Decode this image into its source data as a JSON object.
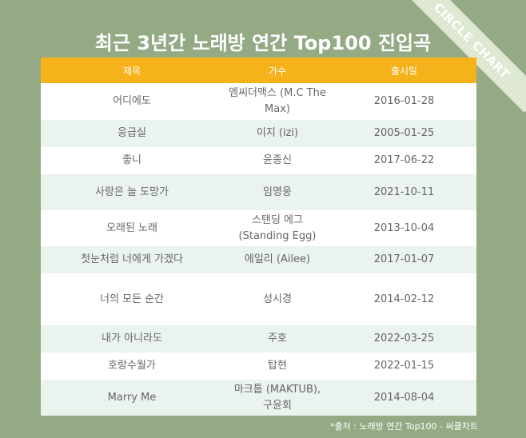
{
  "watermark": "CIRCLE CHART",
  "title": "최근 3년간 노래방 연간 Top100 진입곡",
  "table": {
    "headers": [
      "제목",
      "가수",
      "출시일"
    ],
    "rows": [
      {
        "title": "어디에도",
        "artist": "엠씨더맥스 (M.C The Max)",
        "date": "2016-01-28"
      },
      {
        "title": "응급실",
        "artist": "이지 (izi)",
        "date": "2005-01-25"
      },
      {
        "title": "좋니",
        "artist": "윤종신",
        "date": "2017-06-22"
      },
      {
        "title": "사랑은 늘 도망가",
        "artist": "임영웅",
        "date": "2021-10-11"
      },
      {
        "title": "오래된 노래",
        "artist": "스탠딩 에그(Standing Egg)",
        "date": "2013-10-04"
      },
      {
        "title": "첫눈처럼 너에게 가겠다",
        "artist": "에일리 (Ailee)",
        "date": "2017-01-07"
      },
      {
        "title": "너의 모든 순간",
        "artist": "성시경",
        "date": "2014-02-12"
      },
      {
        "title": "내가 아니라도",
        "artist": "주호",
        "date": "2022-03-25"
      },
      {
        "title": "호랑수월가",
        "artist": "탑현",
        "date": "2022-01-15"
      },
      {
        "title": "Marry Me",
        "artist": "마크툽 (MAKTUB), 구윤회",
        "date": "2014-08-04"
      }
    ]
  },
  "source": "*출처 : 노래방 연간 Top100 - 써클차트"
}
